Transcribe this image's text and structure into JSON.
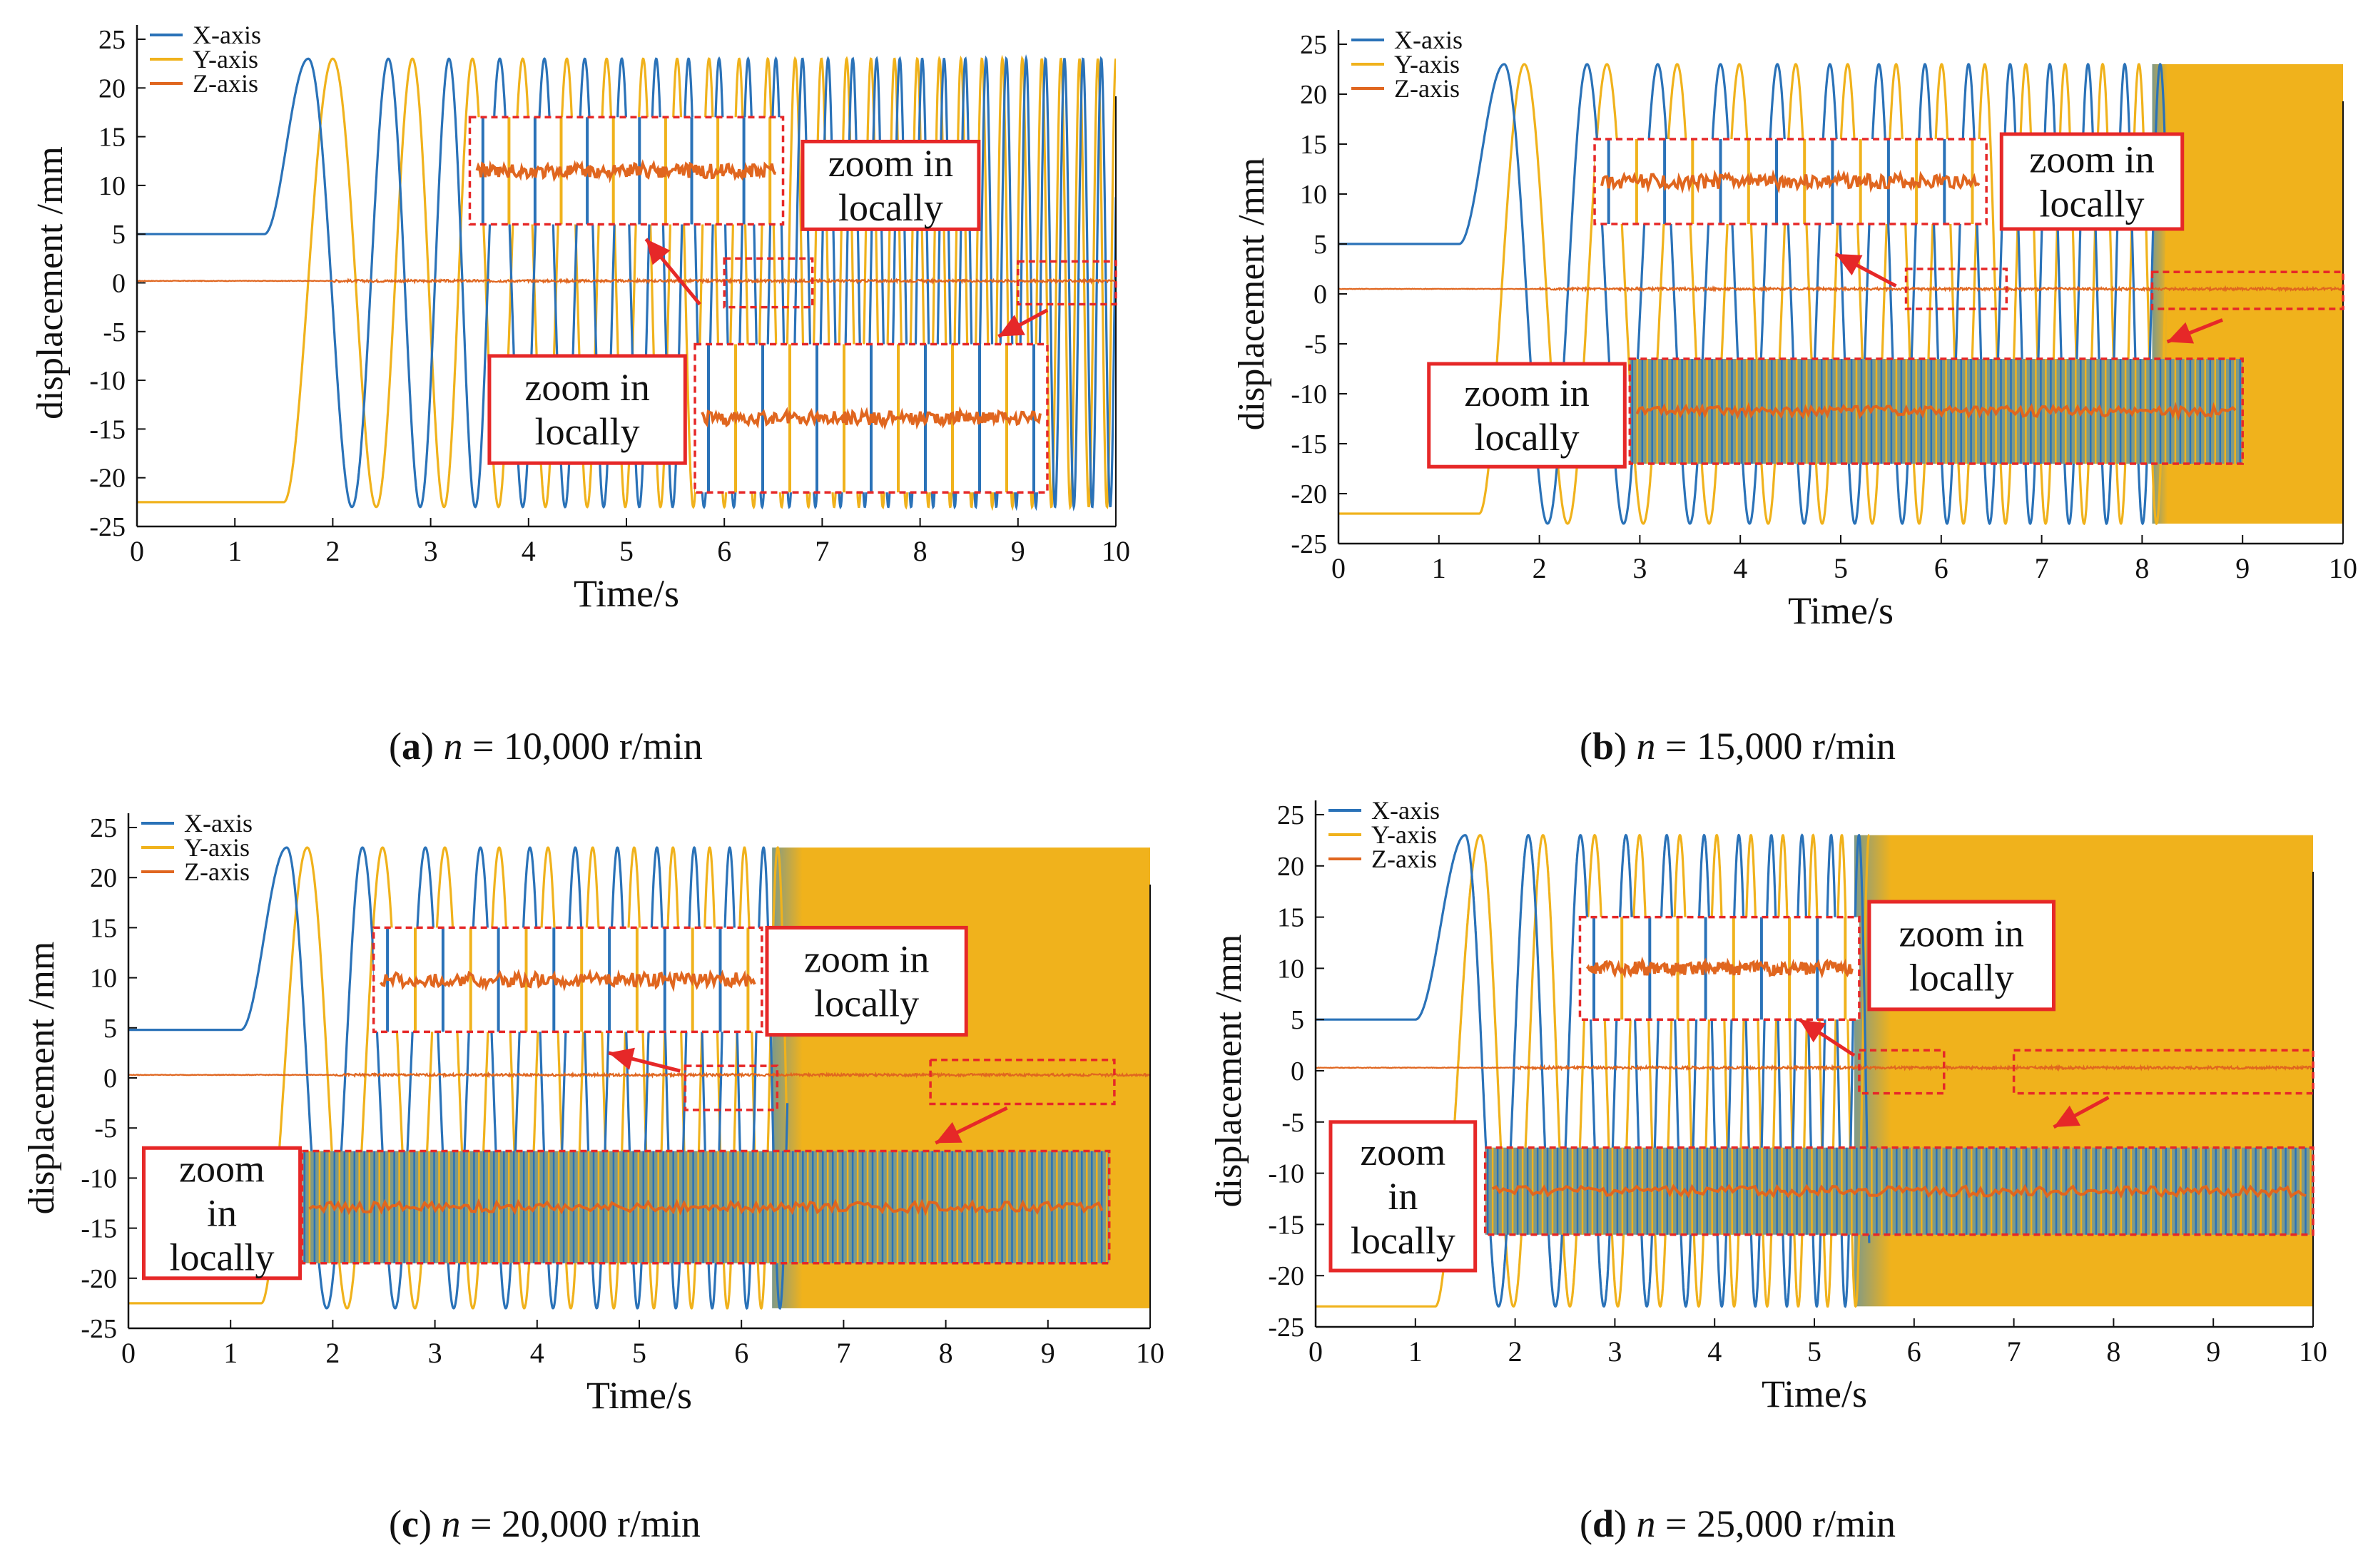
{
  "figure": {
    "colors": {
      "x_axis": "#2a72b8",
      "y_axis": "#f0b21c",
      "z_axis": "#e0661f",
      "highlight": "#e62828",
      "blend": "#7f9a87",
      "axis": "#111111"
    },
    "panels": [
      {
        "caption": {
          "label": "a",
          "var": "n",
          "value": "= 10,000 r/min"
        },
        "chart_data": {
          "type": "line",
          "title": "",
          "xlabel": "Time/s",
          "ylabel": "displacement /mm",
          "xlim": [
            0,
            10
          ],
          "ylim": [
            -25,
            25
          ],
          "xticks": [
            "0",
            "1",
            "2",
            "3",
            "4",
            "5",
            "6",
            "7",
            "8",
            "9",
            "10"
          ],
          "yticks": [
            "25",
            "20",
            "15",
            "10",
            "5",
            "0",
            "-5",
            "-10",
            "-15",
            "-20",
            "-25"
          ],
          "legend": [
            "X-axis",
            "Y-axis",
            "Z-axis"
          ],
          "legend_position": "top-left",
          "series": [
            {
              "name": "X-axis",
              "color": "#2a72b8",
              "model": "start 5 mm, rises to peak 23 mm at t≈1.75 s, then oscillates ±23 mm with increasing frequency",
              "start": 5,
              "amplitude": 23,
              "ramp_start_s": 1.3,
              "peak_s": 1.75,
              "freq_start_hz": 1.0,
              "freq_end_hz": 5.5
            },
            {
              "name": "Y-axis",
              "color": "#f0b21c",
              "model": "start -22.5 mm, rises to peak 23 mm at t≈2.0 s, then oscillates ±23 mm",
              "start": -22.5,
              "amplitude": 23,
              "ramp_start_s": 1.5,
              "peak_s": 2.0
            },
            {
              "name": "Z-axis",
              "color": "#e0661f",
              "model": "near 0 mm with small vibrations",
              "level": 0.2
            }
          ],
          "blend_start_s": null,
          "annotations": {
            "zoom_text_1": [
              "zoom in",
              "locally"
            ],
            "zoom_text_2": [
              "zoom in",
              "locally"
            ]
          }
        }
      },
      {
        "caption": {
          "label": "b",
          "var": "n",
          "value": "= 15,000 r/min"
        },
        "chart_data": {
          "type": "line",
          "title": "",
          "xlabel": "Time/s",
          "ylabel": "displacement /mm",
          "xlim": [
            0,
            10
          ],
          "ylim": [
            -25,
            25
          ],
          "xticks": [
            "0",
            "1",
            "2",
            "3",
            "4",
            "5",
            "6",
            "7",
            "8",
            "9",
            "10"
          ],
          "yticks": [
            "25",
            "20",
            "15",
            "10",
            "5",
            "0",
            "-5",
            "-10",
            "-15",
            "-20",
            "-25"
          ],
          "legend": [
            "X-axis",
            "Y-axis",
            "Z-axis"
          ],
          "legend_position": "top-left",
          "series": [
            {
              "name": "X-axis",
              "color": "#2a72b8",
              "start": 5,
              "amplitude": 23,
              "ramp_start_s": 1.2,
              "peak_s": 1.65,
              "freq_start_hz": 1.1
            },
            {
              "name": "Y-axis",
              "color": "#f0b21c",
              "start": -22,
              "amplitude": 23,
              "ramp_start_s": 1.4,
              "peak_s": 1.85
            },
            {
              "name": "Z-axis",
              "color": "#e0661f",
              "level": 0.5
            }
          ],
          "blend_start_s": 8.1,
          "annotations": {
            "zoom_text_1": [
              "zoom in",
              "locally"
            ],
            "zoom_text_2": [
              "zoom in",
              "locally"
            ]
          }
        }
      },
      {
        "caption": {
          "label": "c",
          "var": "n",
          "value": "= 20,000 r/min"
        },
        "chart_data": {
          "type": "line",
          "title": "",
          "xlabel": "Time/s",
          "ylabel": "displacement /mm",
          "xlim": [
            0,
            10
          ],
          "ylim": [
            -25,
            25
          ],
          "xticks": [
            "0",
            "1",
            "2",
            "3",
            "4",
            "5",
            "6",
            "7",
            "8",
            "9",
            "10"
          ],
          "yticks": [
            "25",
            "20",
            "15",
            "10",
            "5",
            "0",
            "-5",
            "-10",
            "-15",
            "-20",
            "-25"
          ],
          "legend": [
            "X-axis",
            "Y-axis",
            "Z-axis"
          ],
          "legend_position": "top-left",
          "series": [
            {
              "name": "X-axis",
              "color": "#2a72b8",
              "start": 4.8,
              "amplitude": 23,
              "ramp_start_s": 1.1,
              "peak_s": 1.55,
              "freq_start_hz": 1.2
            },
            {
              "name": "Y-axis",
              "color": "#f0b21c",
              "start": -22.5,
              "amplitude": 23,
              "ramp_start_s": 1.3,
              "peak_s": 1.75
            },
            {
              "name": "Z-axis",
              "color": "#e0661f",
              "level": 0.3
            }
          ],
          "blend_start_s": 6.3,
          "annotations": {
            "zoom_text_1": [
              "zoom in",
              "locally"
            ],
            "zoom_text_2": [
              "zoom",
              "in",
              "locally"
            ]
          }
        }
      },
      {
        "caption": {
          "label": "d",
          "var": "n",
          "value": "= 25,000 r/min"
        },
        "chart_data": {
          "type": "line",
          "title": "",
          "xlabel": "Time/s",
          "ylabel": "displacement /mm",
          "xlim": [
            0,
            10
          ],
          "ylim": [
            -25,
            25
          ],
          "xticks": [
            "0",
            "1",
            "2",
            "3",
            "4",
            "5",
            "6",
            "7",
            "8",
            "9",
            "10"
          ],
          "yticks": [
            "25",
            "20",
            "15",
            "10",
            "5",
            "0",
            "-5",
            "-10",
            "-15",
            "-20",
            "-25"
          ],
          "legend": [
            "X-axis",
            "Y-axis",
            "Z-axis"
          ],
          "legend_position": "top-left",
          "series": [
            {
              "name": "X-axis",
              "color": "#2a72b8",
              "start": 5,
              "amplitude": 23,
              "ramp_start_s": 1.0,
              "peak_s": 1.5,
              "freq_start_hz": 1.4
            },
            {
              "name": "Y-axis",
              "color": "#f0b21c",
              "start": -23,
              "amplitude": 23,
              "ramp_start_s": 1.2,
              "peak_s": 1.65
            },
            {
              "name": "Z-axis",
              "color": "#e0661f",
              "level": 0.3
            }
          ],
          "blend_start_s": 5.4,
          "annotations": {
            "zoom_text_1": [
              "zoom in",
              "locally"
            ],
            "zoom_text_2": [
              "zoom",
              "in",
              "locally"
            ]
          }
        }
      }
    ]
  }
}
